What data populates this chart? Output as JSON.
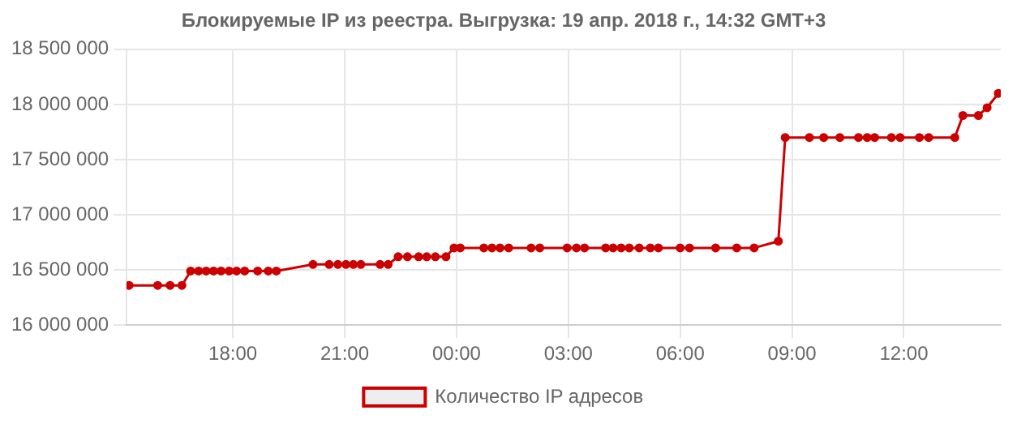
{
  "chart_data": {
    "type": "line",
    "title": "Блокируемые IP из реестра. Выгрузка: 19 апр. 2018 г., 14:32 GMT+3",
    "x": [
      "2018-04-18T15:13",
      "2018-04-18T15:59",
      "2018-04-18T16:19",
      "2018-04-18T16:38",
      "2018-04-18T16:52",
      "2018-04-18T17:05",
      "2018-04-18T17:17",
      "2018-04-18T17:29",
      "2018-04-18T17:41",
      "2018-04-18T17:54",
      "2018-04-18T18:06",
      "2018-04-18T18:19",
      "2018-04-18T18:40",
      "2018-04-18T18:57",
      "2018-04-18T19:10",
      "2018-04-18T20:09",
      "2018-04-18T20:35",
      "2018-04-18T20:49",
      "2018-04-18T21:02",
      "2018-04-18T21:14",
      "2018-04-18T21:26",
      "2018-04-18T21:57",
      "2018-04-18T22:10",
      "2018-04-18T22:26",
      "2018-04-18T22:41",
      "2018-04-18T22:59",
      "2018-04-18T23:12",
      "2018-04-18T23:26",
      "2018-04-18T23:43",
      "2018-04-18T23:56",
      "2018-04-19T00:06",
      "2018-04-19T00:44",
      "2018-04-19T00:57",
      "2018-04-19T01:10",
      "2018-04-19T01:24",
      "2018-04-19T02:00",
      "2018-04-19T02:14",
      "2018-04-19T02:58",
      "2018-04-19T03:13",
      "2018-04-19T03:26",
      "2018-04-19T04:00",
      "2018-04-19T04:12",
      "2018-04-19T04:25",
      "2018-04-19T04:38",
      "2018-04-19T04:54",
      "2018-04-19T05:12",
      "2018-04-19T05:25",
      "2018-04-19T06:00",
      "2018-04-19T06:15",
      "2018-04-19T06:57",
      "2018-04-19T07:31",
      "2018-04-19T07:59",
      "2018-04-19T08:38",
      "2018-04-19T08:49",
      "2018-04-19T09:28",
      "2018-04-19T09:51",
      "2018-04-19T10:17",
      "2018-04-19T10:47",
      "2018-04-19T11:01",
      "2018-04-19T11:13",
      "2018-04-19T11:40",
      "2018-04-19T11:54",
      "2018-04-19T12:25",
      "2018-04-19T12:40",
      "2018-04-19T13:22",
      "2018-04-19T13:35",
      "2018-04-19T14:00",
      "2018-04-19T14:14",
      "2018-04-19T14:32"
    ],
    "series": [
      {
        "name": "Количество IP адресов",
        "color": "#cc0000",
        "values": [
          16360000,
          16360000,
          16360000,
          16360000,
          16490000,
          16490000,
          16490000,
          16490000,
          16490000,
          16490000,
          16490000,
          16490000,
          16490000,
          16490000,
          16490000,
          16550000,
          16550000,
          16550000,
          16550000,
          16550000,
          16550000,
          16550000,
          16550000,
          16620000,
          16620000,
          16620000,
          16620000,
          16620000,
          16620000,
          16700000,
          16700000,
          16700000,
          16700000,
          16700000,
          16700000,
          16700000,
          16700000,
          16700000,
          16700000,
          16700000,
          16700000,
          16700000,
          16700000,
          16700000,
          16700000,
          16700000,
          16700000,
          16700000,
          16700000,
          16700000,
          16700000,
          16700000,
          16760000,
          17700000,
          17700000,
          17700000,
          17700000,
          17700000,
          17700000,
          17700000,
          17700000,
          17700000,
          17700000,
          17700000,
          17700000,
          17900000,
          17900000,
          17970000,
          18100000
        ]
      }
    ],
    "xlim": [
      "2018-04-18T15:09",
      "2018-04-19T14:36"
    ],
    "xticks": [
      {
        "value": "2018-04-18T18:00",
        "label": "18:00"
      },
      {
        "value": "2018-04-18T21:00",
        "label": "21:00"
      },
      {
        "value": "2018-04-19T00:00",
        "label": "00:00"
      },
      {
        "value": "2018-04-19T03:00",
        "label": "03:00"
      },
      {
        "value": "2018-04-19T06:00",
        "label": "06:00"
      },
      {
        "value": "2018-04-19T09:00",
        "label": "09:00"
      },
      {
        "value": "2018-04-19T12:00",
        "label": "12:00"
      }
    ],
    "ylim": [
      16000000,
      18500000
    ],
    "yticks": [
      {
        "value": 16000000,
        "label": "16 000 000"
      },
      {
        "value": 16500000,
        "label": "16 500 000"
      },
      {
        "value": 17000000,
        "label": "17 000 000"
      },
      {
        "value": 17500000,
        "label": "17 500 000"
      },
      {
        "value": 18000000,
        "label": "18 000 000"
      },
      {
        "value": 18500000,
        "label": "18 500 000"
      }
    ],
    "grid": true,
    "legend": "bottom",
    "marker": "circle",
    "line_style": "solid"
  }
}
